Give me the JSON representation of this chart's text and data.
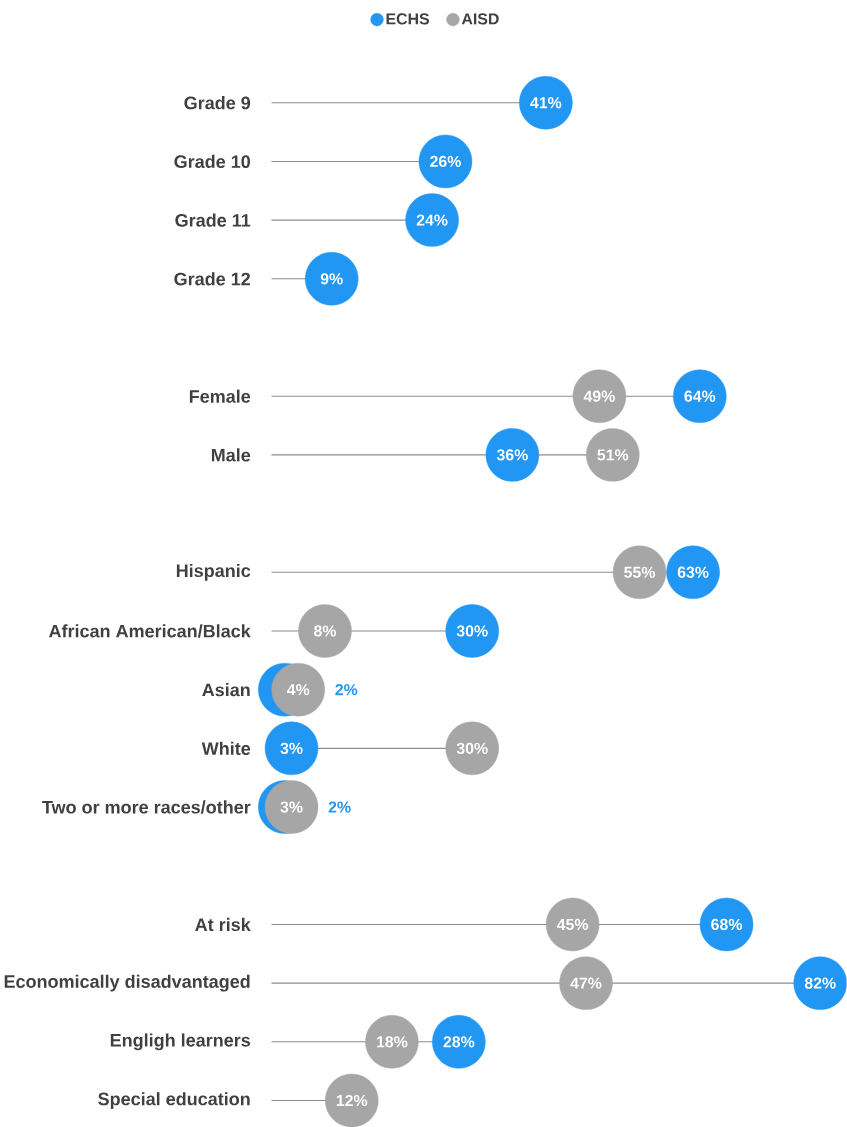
{
  "chart_data": {
    "type": "lollipop",
    "orientation": "horizontal",
    "marker": "circle",
    "legend": "top",
    "categories": [
      "Grade 9",
      "Grade 10",
      "Grade 11",
      "Grade 12",
      null,
      "Female",
      "Male",
      null,
      "Hispanic",
      "African American/Black",
      "Asian",
      "White",
      "Two or more races/other",
      null,
      "At risk",
      "Economically disadvantaged",
      "Engligh learners",
      "Special education"
    ],
    "series": [
      {
        "name": "ECHS",
        "color": "#2196f3",
        "values": [
          41,
          26,
          24,
          9,
          null,
          64,
          36,
          null,
          63,
          30,
          2,
          3,
          2,
          null,
          68,
          82,
          28,
          null
        ],
        "value_labels": [
          "41%",
          "26%",
          "24%",
          "9%",
          null,
          "64%",
          "36%",
          null,
          "63%",
          "30%",
          "2%",
          "3%",
          "2%",
          null,
          "68%",
          "82%",
          "28%",
          null
        ]
      },
      {
        "name": "AISD",
        "color": "#a6a6a6",
        "values": [
          null,
          null,
          null,
          null,
          null,
          49,
          51,
          null,
          55,
          8,
          4,
          30,
          3,
          null,
          45,
          47,
          18,
          12
        ],
        "value_labels": [
          null,
          null,
          null,
          null,
          null,
          "49%",
          "51%",
          null,
          "55%",
          "8%",
          "4%",
          "30%",
          "3%",
          null,
          "45%",
          "47%",
          "18%",
          "12%"
        ]
      }
    ]
  }
}
